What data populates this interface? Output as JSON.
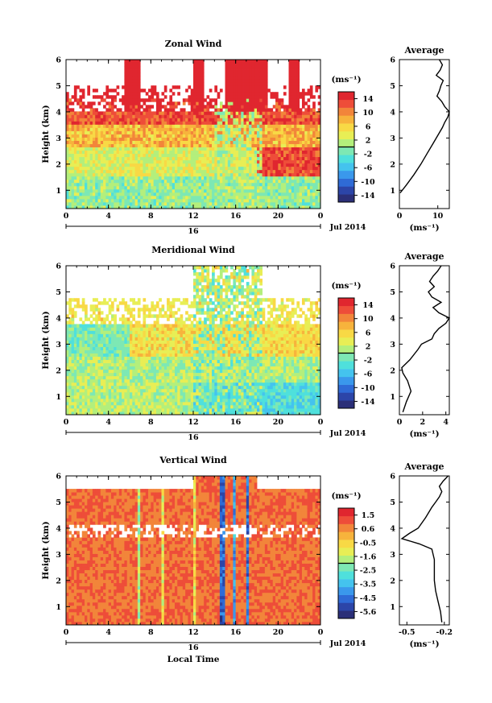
{
  "chart_data": [
    {
      "type": "heatmap",
      "title": "Zonal Wind",
      "xlabel": "",
      "ylabel": "Height (km)",
      "xticks": [
        "0",
        "4",
        "8",
        "12",
        "16",
        "20",
        "0"
      ],
      "yticks": [
        "1",
        "2",
        "3",
        "4",
        "5",
        "6"
      ],
      "date_bar": {
        "day": "16",
        "label": "Jul 2014"
      },
      "xlim": [
        0,
        24
      ],
      "ylim": [
        0.3,
        6
      ],
      "colorbar": {
        "unit": "(ms⁻¹)",
        "ticks": [
          "14",
          "10",
          "6",
          "2",
          "-2",
          "-6",
          "-10",
          "-14"
        ],
        "range": [
          -16,
          16
        ]
      },
      "profile": {
        "title": "Average",
        "xticks": [
          "0",
          "10"
        ],
        "xlabel": "(ms⁻¹)",
        "xlim": [
          0,
          13
        ],
        "heights": [
          0.9,
          1.2,
          1.6,
          2.0,
          2.4,
          2.8,
          3.0,
          3.2,
          3.4,
          3.6,
          3.8,
          4.0,
          4.2,
          4.4,
          4.6,
          4.8,
          5.0,
          5.2,
          5.4,
          5.6,
          5.8,
          6.0
        ],
        "values": [
          0.2,
          1.8,
          3.8,
          5.6,
          7.2,
          8.8,
          9.6,
          10.4,
          11.2,
          11.8,
          12.6,
          13.0,
          11.8,
          11.0,
          9.8,
          10.4,
          10.8,
          11.4,
          9.6,
          10.6,
          11.2,
          10.4
        ]
      }
    },
    {
      "type": "heatmap",
      "title": "Meridional Wind",
      "xlabel": "",
      "ylabel": "Height (km)",
      "xticks": [
        "0",
        "4",
        "8",
        "12",
        "16",
        "20",
        "0"
      ],
      "yticks": [
        "1",
        "2",
        "3",
        "4",
        "5",
        "6"
      ],
      "date_bar": {
        "day": "16",
        "label": "Jul 2014"
      },
      "xlim": [
        0,
        24
      ],
      "ylim": [
        0.3,
        6
      ],
      "colorbar": {
        "unit": "(ms⁻¹)",
        "ticks": [
          "14",
          "10",
          "6",
          "2",
          "-2",
          "-6",
          "-10",
          "-14"
        ],
        "range": [
          -16,
          16
        ]
      },
      "profile": {
        "title": "Average",
        "xticks": [
          "0",
          "2",
          "4"
        ],
        "xlabel": "(ms⁻¹)",
        "xlim": [
          0,
          4.3
        ],
        "heights": [
          0.4,
          0.8,
          1.2,
          1.6,
          1.9,
          2.1,
          2.4,
          2.8,
          3.0,
          3.2,
          3.4,
          3.6,
          3.8,
          4.0,
          4.2,
          4.4,
          4.6,
          4.8,
          5.0,
          5.2,
          5.4,
          5.6,
          5.8,
          6.0
        ],
        "values": [
          0.3,
          0.6,
          1.0,
          0.7,
          0.3,
          0.2,
          0.9,
          1.6,
          1.9,
          2.8,
          3.0,
          3.4,
          4.0,
          4.3,
          3.4,
          2.9,
          3.6,
          2.8,
          2.5,
          3.0,
          2.6,
          2.9,
          3.3,
          3.6
        ]
      }
    },
    {
      "type": "heatmap",
      "title": "Vertical Wind",
      "xlabel": "Local Time",
      "ylabel": "Height (km)",
      "xticks": [
        "0",
        "4",
        "8",
        "12",
        "16",
        "20",
        "0"
      ],
      "yticks": [
        "1",
        "2",
        "3",
        "4",
        "5",
        "6"
      ],
      "date_bar": {
        "day": "16",
        "label": "Jul 2014"
      },
      "xlim": [
        0,
        24
      ],
      "ylim": [
        0.3,
        6
      ],
      "colorbar": {
        "unit": "(ms⁻¹)",
        "ticks": [
          "1.5",
          "0.6",
          "-0.5",
          "-1.6",
          "-2.5",
          "-3.5",
          "-4.5",
          "-5.6"
        ],
        "range": [
          -6,
          2
        ]
      },
      "profile": {
        "title": "Average",
        "xticks": [
          "-0.5",
          "-0.2"
        ],
        "xlabel": "(ms⁻¹)",
        "xlim": [
          -0.56,
          -0.16
        ],
        "heights": [
          0.4,
          0.8,
          1.2,
          1.6,
          2.0,
          2.4,
          2.8,
          3.2,
          3.4,
          3.6,
          3.8,
          4.0,
          4.4,
          4.8,
          5.0,
          5.2,
          5.4,
          5.6,
          5.8,
          6.0
        ],
        "values": [
          -0.22,
          -0.23,
          -0.25,
          -0.27,
          -0.28,
          -0.28,
          -0.28,
          -0.3,
          -0.4,
          -0.54,
          -0.48,
          -0.41,
          -0.35,
          -0.3,
          -0.27,
          -0.24,
          -0.22,
          -0.24,
          -0.21,
          -0.17
        ]
      }
    }
  ]
}
